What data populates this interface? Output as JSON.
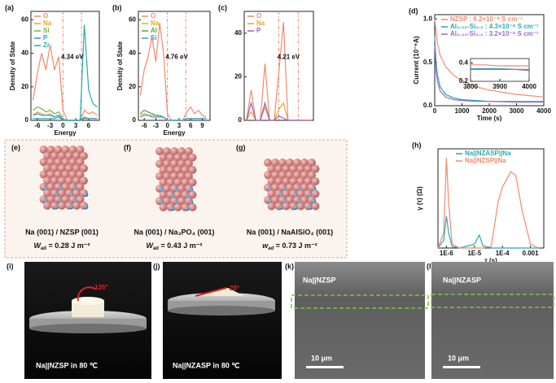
{
  "chart_data": [
    {
      "type": "line",
      "panel": "(a)",
      "xlabel": "Energy",
      "ylabel": "Density of State",
      "annotation": "4.34 eV",
      "vlines": [
        0,
        4.34
      ],
      "xlim": [
        -7.5,
        8.5
      ],
      "xticks": [
        -6,
        -3,
        0,
        3,
        6
      ],
      "ylim": [
        0,
        65
      ],
      "yticks": [
        0,
        20,
        40,
        60
      ],
      "x": [
        -7,
        -6,
        -5,
        -4,
        -3,
        -2,
        -1,
        0,
        1,
        2,
        3,
        4,
        5,
        6,
        7,
        8
      ],
      "series": [
        {
          "name": "O",
          "color": "#f08a6c",
          "values": [
            12,
            28,
            40,
            30,
            45,
            30,
            38,
            6,
            0,
            0,
            0,
            0,
            6,
            4,
            5,
            3
          ]
        },
        {
          "name": "Na",
          "color": "#e6a52e",
          "values": [
            3,
            5,
            4,
            3,
            4,
            2,
            3,
            0,
            0,
            0,
            0,
            0,
            1,
            1,
            1,
            1
          ]
        },
        {
          "name": "Si",
          "color": "#6db33f",
          "values": [
            6,
            8,
            7,
            5,
            6,
            4,
            5,
            1,
            0,
            0,
            0,
            0,
            1,
            1,
            1,
            1
          ]
        },
        {
          "name": "P",
          "color": "#3d8fd4",
          "values": [
            3,
            4,
            3,
            3,
            3,
            2,
            3,
            0,
            0,
            0,
            0,
            0,
            2,
            1,
            1,
            1
          ]
        },
        {
          "name": "Zr",
          "color": "#27a9b5",
          "values": [
            1,
            1,
            1,
            1,
            1,
            1,
            2,
            0,
            0,
            0,
            0,
            0,
            57,
            18,
            10,
            8
          ]
        }
      ]
    },
    {
      "type": "line",
      "panel": "(b)",
      "xlabel": "Energy",
      "ylabel": "Density of State",
      "annotation": "4.76 eV",
      "vlines": [
        0,
        4.76
      ],
      "xlim": [
        -7.5,
        11
      ],
      "xticks": [
        -6,
        -3,
        0,
        3,
        6,
        9
      ],
      "ylim": [
        0,
        65
      ],
      "yticks": [
        0,
        20,
        40,
        60
      ],
      "x": [
        -7,
        -6,
        -5,
        -4,
        -3,
        -2,
        -1,
        0,
        1,
        2,
        3,
        4,
        5,
        6,
        7,
        8,
        9,
        10
      ],
      "series": [
        {
          "name": "O",
          "color": "#f08a6c",
          "values": [
            15,
            30,
            38,
            50,
            35,
            58,
            40,
            4,
            0,
            0,
            0,
            0,
            5,
            8,
            4,
            6,
            3,
            2
          ]
        },
        {
          "name": "Na",
          "color": "#e6a52e",
          "values": [
            3,
            4,
            3,
            3,
            3,
            2,
            2,
            0,
            0,
            0,
            0,
            0,
            1,
            1,
            1,
            1,
            1,
            1
          ]
        },
        {
          "name": "Al",
          "color": "#52a845",
          "values": [
            4,
            6,
            5,
            4,
            3,
            3,
            2,
            0,
            0,
            0,
            0,
            0,
            1,
            1,
            1,
            1,
            1,
            1
          ]
        },
        {
          "name": "Si",
          "color": "#3a9ad0",
          "values": [
            2,
            3,
            3,
            2,
            2,
            2,
            2,
            0,
            0,
            0,
            0,
            0,
            1,
            1,
            1,
            1,
            1,
            1
          ]
        }
      ]
    },
    {
      "type": "line",
      "panel": "(c)",
      "annotation": "4.21 eV",
      "vlines": [
        0,
        4.21
      ],
      "xlim": [
        -7.5,
        7.5
      ],
      "ylim": [
        0,
        50
      ],
      "yticks": [
        0,
        20,
        40
      ],
      "x": [
        -7,
        -6,
        -5,
        -4,
        -3,
        -2,
        -1,
        0,
        1,
        2,
        3,
        4,
        5,
        6,
        7
      ],
      "series": [
        {
          "name": "O",
          "color": "#f08a6c",
          "values": [
            0,
            14,
            0,
            0,
            26,
            0,
            0,
            22,
            45,
            0,
            0,
            0,
            0,
            0,
            0
          ]
        },
        {
          "name": "Na",
          "color": "#e6a52e",
          "values": [
            0,
            4,
            0,
            0,
            6,
            0,
            0,
            5,
            8,
            0,
            0,
            0,
            0,
            0,
            0
          ]
        },
        {
          "name": "P",
          "color": "#9b5fc0",
          "values": [
            0,
            8,
            0,
            0,
            8,
            0,
            0,
            2,
            1,
            0,
            0,
            0,
            0,
            0,
            0
          ]
        }
      ]
    },
    {
      "type": "line",
      "panel": "(d)",
      "xlabel": "Time (s)",
      "ylabel": "Current (10⁻⁶A)",
      "xlim": [
        0,
        4000
      ],
      "xticks": [
        0,
        1000,
        2000,
        3000,
        4000
      ],
      "ylim": [
        0,
        1.05
      ],
      "yticks": [
        {
          "value": 0,
          "label": "0.0"
        },
        0.5,
        {
          "value": 1,
          "label": "1.0"
        }
      ],
      "x": [
        0,
        50,
        100,
        200,
        400,
        700,
        1000,
        1500,
        2000,
        3000,
        4000
      ],
      "series": [
        {
          "name": "NZSP : 6.2×10⁻⁶ S cm⁻¹",
          "color": "#f08a6c",
          "values": [
            1.0,
            0.85,
            0.72,
            0.58,
            0.45,
            0.35,
            0.29,
            0.22,
            0.18,
            0.13,
            0.1
          ]
        },
        {
          "name": "Al₀.₀₅-Si₀.₂ : 4.3×10⁻⁶ S cm⁻¹",
          "color": "#27a9b5",
          "values": [
            0.8,
            0.5,
            0.35,
            0.22,
            0.13,
            0.09,
            0.07,
            0.06,
            0.05,
            0.05,
            0.05
          ]
        },
        {
          "name": "Al₀.₂₀-Si₀.₂ : 3.2×10⁻⁶ S cm⁻¹",
          "color": "#9b6bc8",
          "values": [
            0.7,
            0.4,
            0.28,
            0.17,
            0.1,
            0.07,
            0.06,
            0.05,
            0.05,
            0.04,
            0.04
          ]
        }
      ]
    },
    {
      "type": "line",
      "xlim": [
        3800,
        4000
      ],
      "xticks": [
        3800,
        3900,
        4000
      ],
      "ylim": [
        0.2,
        0.45
      ],
      "yticks": [
        0.2,
        0.4
      ],
      "x": [
        3800,
        3850,
        3900,
        3950,
        4000
      ],
      "series": [
        {
          "color": "#f08a6c",
          "values": [
            0.38,
            0.38,
            0.37,
            0.37,
            0.37
          ]
        },
        {
          "color": "#27a9b5",
          "values": [
            0.34,
            0.34,
            0.34,
            0.33,
            0.33
          ]
        },
        {
          "color": "#9b6bc8",
          "values": [
            0.33,
            0.33,
            0.33,
            0.33,
            0.32
          ]
        }
      ]
    },
    {
      "type": "line",
      "panel": "(h)",
      "xlabel": "τ (s)",
      "ylabel": "γ (τ) (Ω)",
      "log_x": true,
      "xlim": [
        5e-07,
        0.003
      ],
      "xticks": [
        {
          "value": 1e-06,
          "label": "1E-6"
        },
        {
          "value": 1e-05,
          "label": "1E-5"
        },
        {
          "value": 0.0001,
          "label": "1E-4"
        },
        0.001
      ],
      "ylim": [
        0,
        130
      ],
      "x": [
        5e-07,
        8e-07,
        1e-06,
        1.2e-06,
        1.6e-06,
        3e-06,
        1e-05,
        1.5e-05,
        2e-05,
        4e-05,
        7e-05,
        0.0001,
        0.0002,
        0.0003,
        0.0005,
        0.001,
        0.002
      ],
      "series": [
        {
          "name": "Na||NZASP||Na",
          "color": "#27a9b5",
          "values": [
            0,
            10,
            42,
            20,
            2,
            0,
            5,
            17,
            3,
            0,
            0,
            0,
            0,
            0,
            0,
            0,
            0
          ]
        },
        {
          "name": "Na||NZSP||Na",
          "color": "#f08a6c",
          "values": [
            0,
            20,
            118,
            60,
            5,
            0,
            0,
            0,
            0,
            2,
            60,
            80,
            100,
            95,
            50,
            5,
            0
          ]
        }
      ]
    }
  ],
  "panels": {
    "e": {
      "label": "(e)",
      "interface": "Na (001) / NZSP (001)",
      "w": "W",
      "sub": "ad",
      "value": " = 0.28 J m⁻²"
    },
    "f": {
      "label": "(f)",
      "interface": "Na (001) / Na₃PO₄ (001)",
      "w": "W",
      "sub": "ad",
      "value": " = 0.43 J m⁻²"
    },
    "g": {
      "label": "(g)",
      "interface": "Na (001) / NaAlSiO₄ (001)",
      "w": "w",
      "sub": "ad",
      "value": " = 0.73 J m⁻²"
    },
    "i": {
      "label": "(i)",
      "angle": "126°",
      "caption": "Na||NZSP in 80 ℃"
    },
    "j": {
      "label": "(j)",
      "angle": "28°",
      "caption": "Na||NZASP in 80 ℃"
    },
    "k": {
      "label": "(k)",
      "caption": "Na||NZSP",
      "scale": "10 μm"
    },
    "l": {
      "label": "(l)",
      "caption": "Na||NZASP",
      "scale": "10 μm"
    }
  }
}
